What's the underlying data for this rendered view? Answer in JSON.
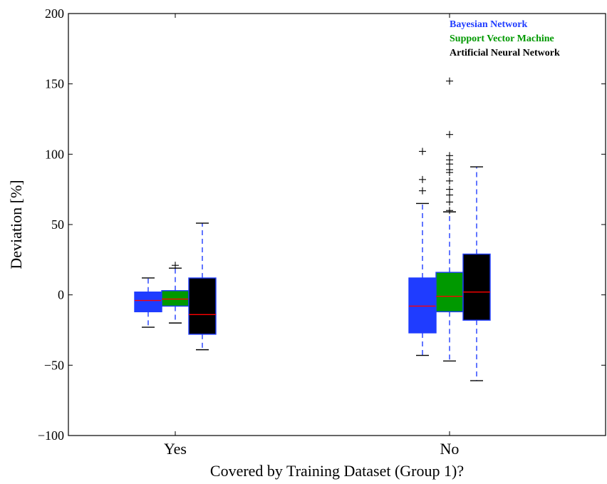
{
  "chart_data": {
    "type": "boxplot",
    "xlabel": "Covered by Training Dataset (Group 1)?",
    "ylabel": "Deviation [%]",
    "ylim": [
      -100,
      200
    ],
    "yticks": [
      -100,
      -50,
      0,
      50,
      100,
      150,
      200
    ],
    "ytick_labels": [
      "−100",
      "−50",
      "0",
      "50",
      "100",
      "150",
      "200"
    ],
    "categories": [
      "Yes",
      "No"
    ],
    "grid": false,
    "legend": {
      "placement": "top-right"
    },
    "series": [
      {
        "name": "Bayesian Network",
        "color": "#1f3cff",
        "boxes": [
          {
            "category": "Yes",
            "whisker_low": -23,
            "q1": -12,
            "median": -4,
            "q3": 2,
            "whisker_high": 12,
            "outliers": []
          },
          {
            "category": "No",
            "whisker_low": -43,
            "q1": -27,
            "median": -8,
            "q3": 12,
            "whisker_high": 65,
            "outliers": [
              74,
              82,
              102
            ]
          }
        ]
      },
      {
        "name": "Support Vector Machine",
        "color": "#009900",
        "boxes": [
          {
            "category": "Yes",
            "whisker_low": -20,
            "q1": -8,
            "median": -3,
            "q3": 3,
            "whisker_high": 19,
            "outliers": [
              21
            ]
          },
          {
            "category": "No",
            "whisker_low": -47,
            "q1": -12,
            "median": -1,
            "q3": 16,
            "whisker_high": 59,
            "outliers": [
              60,
              66,
              71,
              75,
              81,
              87,
              89,
              93,
              96,
              99,
              114,
              152
            ]
          }
        ]
      },
      {
        "name": "Artificial Neural Network",
        "color": "#000000",
        "boxes": [
          {
            "category": "Yes",
            "whisker_low": -39,
            "q1": -28,
            "median": -14,
            "q3": 12,
            "whisker_high": 51,
            "outliers": []
          },
          {
            "category": "No",
            "whisker_low": -61,
            "q1": -18,
            "median": 2,
            "q3": 29,
            "whisker_high": 91,
            "outliers": []
          }
        ]
      }
    ],
    "median_color": "#ff0000",
    "box_edge_color": "#1f3cff",
    "whisker_color": "#1f3cff"
  }
}
